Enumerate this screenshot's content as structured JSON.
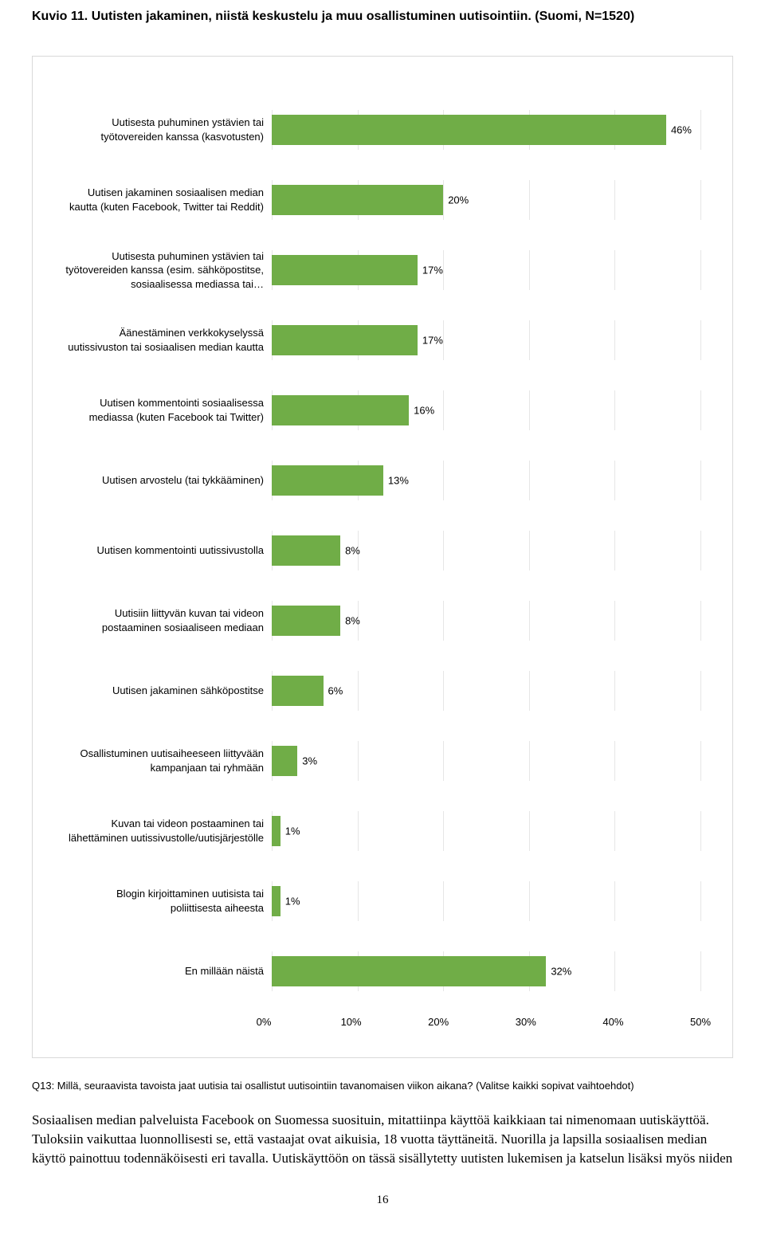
{
  "title": "Kuvio 11. Uutisten jakaminen, niistä keskustelu ja muu osallistuminen uutisointiin. (Suomi, N=1520)",
  "chart": {
    "type": "bar",
    "xmin": 0,
    "xmax": 50,
    "xtick_step": 10,
    "bar_color": "#70ad47",
    "grid_color": "#e6e6e6",
    "background_color": "#ffffff",
    "value_suffix": "%",
    "label_fontsize": 13,
    "value_fontsize": 13,
    "ticks": [
      "0%",
      "10%",
      "20%",
      "30%",
      "40%",
      "50%"
    ],
    "items": [
      {
        "label": "Uutisesta puhuminen ystävien tai työtovereiden kanssa (kasvotusten)",
        "value": 46
      },
      {
        "label": "Uutisen jakaminen sosiaalisen median kautta (kuten Facebook, Twitter tai Reddit)",
        "value": 20
      },
      {
        "label": "Uutisesta puhuminen ystävien tai työtovereiden kanssa (esim. sähköpostitse, sosiaalisessa mediassa tai…",
        "value": 17
      },
      {
        "label": "Äänestäminen verkkokyselyssä uutissivuston tai sosiaalisen median kautta",
        "value": 17
      },
      {
        "label": "Uutisen kommentointi sosiaalisessa mediassa (kuten Facebook tai Twitter)",
        "value": 16
      },
      {
        "label": "Uutisen arvostelu (tai tykkääminen)",
        "value": 13
      },
      {
        "label": "Uutisen kommentointi uutissivustolla",
        "value": 8
      },
      {
        "label": "Uutisiin liittyvän kuvan tai videon postaaminen sosiaaliseen mediaan",
        "value": 8
      },
      {
        "label": "Uutisen jakaminen sähköpostitse",
        "value": 6
      },
      {
        "label": "Osallistuminen uutisaiheeseen liittyvään kampanjaan tai ryhmään",
        "value": 3
      },
      {
        "label": "Kuvan tai videon postaaminen tai lähettäminen uutissivustolle/uutisjärjestölle",
        "value": 1
      },
      {
        "label": "Blogin kirjoittaminen uutisista tai poliittisesta aiheesta",
        "value": 1
      },
      {
        "label": "En millään näistä",
        "value": 32
      }
    ]
  },
  "question": "Q13: Millä, seuraavista tavoista jaat uutisia tai osallistut uutisointiin tavanomaisen viikon aikana? (Valitse kaikki sopivat vaihtoehdot)",
  "body": "Sosiaalisen median palveluista Facebook on Suomessa suosituin, mitattiinpa käyttöä kaikkiaan tai nimenomaan uutiskäyttöä. Tuloksiin vaikuttaa luonnollisesti se, että vastaajat ovat aikuisia, 18 vuotta täyttäneitä. Nuorilla ja lapsilla sosiaalisen median käyttö painottuu todennäköisesti eri tavalla. Uutiskäyttöön on tässä sisällytetty uutisten lukemisen ja katselun lisäksi myös niiden",
  "page_number": "16"
}
